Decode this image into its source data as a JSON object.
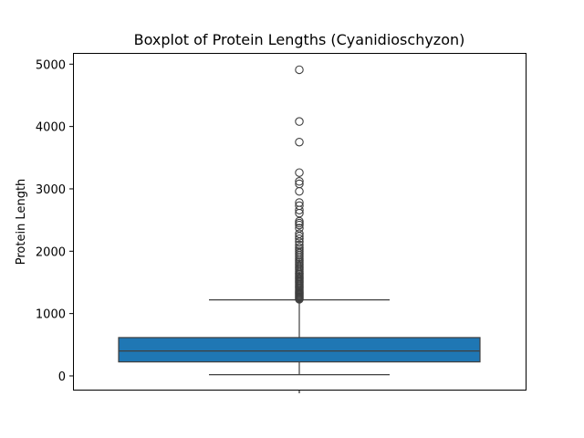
{
  "chart_data": {
    "type": "box",
    "title": "Boxplot of Protein Lengths (Cyanidioschyzon)",
    "xlabel": "",
    "ylabel": "Protein Length",
    "ylim": [
      -220,
      5180
    ],
    "yticks": [
      0,
      1000,
      2000,
      3000,
      4000,
      5000
    ],
    "grid": false,
    "legend": "none",
    "box": {
      "whisker_low": 20,
      "q1": 225,
      "median": 400,
      "q3": 615,
      "whisker_high": 1220
    },
    "outliers": [
      1230,
      1245,
      1260,
      1275,
      1290,
      1305,
      1320,
      1335,
      1350,
      1370,
      1390,
      1410,
      1430,
      1450,
      1470,
      1490,
      1510,
      1530,
      1550,
      1570,
      1590,
      1610,
      1630,
      1650,
      1675,
      1700,
      1725,
      1750,
      1775,
      1800,
      1825,
      1850,
      1880,
      1910,
      1940,
      1970,
      2000,
      2030,
      2060,
      2100,
      2150,
      2200,
      2240,
      2280,
      2370,
      2420,
      2450,
      2480,
      2610,
      2660,
      2730,
      2780,
      2960,
      3080,
      3120,
      3260,
      3750,
      4080,
      4910
    ],
    "colors": {
      "box_fill": "#1f77b4",
      "line": "#3f3f3f",
      "axes": "#000000",
      "background": "#ffffff"
    }
  }
}
